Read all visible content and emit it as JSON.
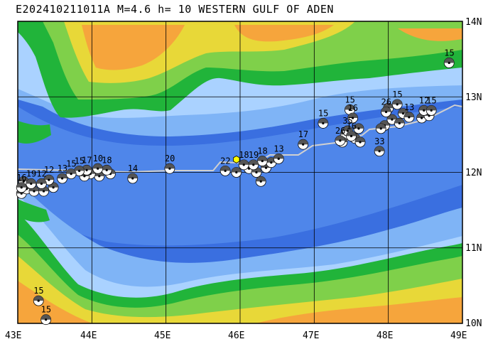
{
  "title": "E202410211011A M=4.6 h= 10 WESTERN GULF OF ADEN",
  "axes": {
    "lon_labels": [
      "43E",
      "44E",
      "45E",
      "46E",
      "47E",
      "48E",
      "49E"
    ],
    "lat_labels": [
      "14N",
      "13N",
      "12N",
      "11N",
      "10N"
    ]
  },
  "colors": {
    "deep_sea": "#3a6fe0",
    "mid_sea": "#4f86ea",
    "shallow_sea": "#7fb4f6",
    "coast_sea": "#aad2ff",
    "lowland": "#21b43a",
    "upland": "#7fd04a",
    "highland": "#e8d838",
    "mountain": "#f6a53c",
    "ridge": "#d0d0d0",
    "mainshock": "#ffff00"
  },
  "mainshock": {
    "lon": 45.95,
    "lat": 12.17
  },
  "events": [
    {
      "lon": 48.82,
      "lat": 13.45,
      "depth": "15"
    },
    {
      "lon": 47.12,
      "lat": 12.65,
      "depth": "15"
    },
    {
      "lon": 47.48,
      "lat": 12.83,
      "depth": "15"
    },
    {
      "lon": 47.52,
      "lat": 12.72,
      "depth": "16"
    },
    {
      "lon": 46.85,
      "lat": 12.37,
      "depth": "17"
    },
    {
      "lon": 47.45,
      "lat": 12.55,
      "depth": "35"
    },
    {
      "lon": 47.5,
      "lat": 12.48,
      "depth": "16"
    },
    {
      "lon": 47.35,
      "lat": 12.42,
      "depth": "26"
    },
    {
      "lon": 47.88,
      "lat": 12.28,
      "depth": "33"
    },
    {
      "lon": 47.97,
      "lat": 12.8,
      "depth": "26"
    },
    {
      "lon": 48.12,
      "lat": 12.9,
      "depth": "15"
    },
    {
      "lon": 48.28,
      "lat": 12.73,
      "depth": "13"
    },
    {
      "lon": 48.48,
      "lat": 12.82,
      "depth": "12"
    },
    {
      "lon": 48.58,
      "lat": 12.82,
      "depth": "15"
    },
    {
      "lon": 46.52,
      "lat": 12.18,
      "depth": "13"
    },
    {
      "lon": 46.3,
      "lat": 12.15,
      "depth": "18"
    },
    {
      "lon": 46.18,
      "lat": 12.1,
      "depth": "19"
    },
    {
      "lon": 46.05,
      "lat": 12.1,
      "depth": "18"
    },
    {
      "lon": 45.8,
      "lat": 12.02,
      "depth": "22"
    },
    {
      "lon": 45.05,
      "lat": 12.05,
      "depth": "20"
    },
    {
      "lon": 44.55,
      "lat": 11.92,
      "depth": "14"
    },
    {
      "lon": 44.2,
      "lat": 12.03,
      "depth": "18"
    },
    {
      "lon": 44.08,
      "lat": 12.05,
      "depth": "10"
    },
    {
      "lon": 43.93,
      "lat": 12.03,
      "depth": "17"
    },
    {
      "lon": 43.83,
      "lat": 12.02,
      "depth": "15"
    },
    {
      "lon": 43.72,
      "lat": 11.98,
      "depth": "15"
    },
    {
      "lon": 43.6,
      "lat": 11.92,
      "depth": "13"
    },
    {
      "lon": 43.42,
      "lat": 11.9,
      "depth": "12"
    },
    {
      "lon": 43.32,
      "lat": 11.85,
      "depth": "12"
    },
    {
      "lon": 43.18,
      "lat": 11.85,
      "depth": "19"
    },
    {
      "lon": 43.05,
      "lat": 11.8,
      "depth": "16"
    },
    {
      "lon": 43.28,
      "lat": 10.3,
      "depth": "15"
    },
    {
      "lon": 43.38,
      "lat": 10.05,
      "depth": "15"
    }
  ],
  "unlabeled_events": [
    {
      "lon": 46.12,
      "lat": 12.05
    },
    {
      "lon": 46.22,
      "lat": 12.0
    },
    {
      "lon": 46.35,
      "lat": 12.06
    },
    {
      "lon": 46.28,
      "lat": 11.88
    },
    {
      "lon": 46.42,
      "lat": 12.13
    },
    {
      "lon": 45.95,
      "lat": 12.0
    },
    {
      "lon": 47.55,
      "lat": 12.45
    },
    {
      "lon": 47.42,
      "lat": 12.5
    },
    {
      "lon": 47.6,
      "lat": 12.58
    },
    {
      "lon": 47.38,
      "lat": 12.4
    },
    {
      "lon": 47.62,
      "lat": 12.4
    },
    {
      "lon": 47.95,
      "lat": 12.62
    },
    {
      "lon": 48.05,
      "lat": 12.7
    },
    {
      "lon": 48.15,
      "lat": 12.65
    },
    {
      "lon": 47.9,
      "lat": 12.58
    },
    {
      "lon": 48.0,
      "lat": 12.85
    },
    {
      "lon": 48.2,
      "lat": 12.78
    },
    {
      "lon": 48.45,
      "lat": 12.72
    },
    {
      "lon": 48.55,
      "lat": 12.75
    },
    {
      "lon": 44.25,
      "lat": 11.98
    },
    {
      "lon": 44.1,
      "lat": 11.95
    },
    {
      "lon": 43.98,
      "lat": 11.98
    },
    {
      "lon": 43.9,
      "lat": 11.95
    },
    {
      "lon": 43.05,
      "lat": 11.72
    },
    {
      "lon": 43.12,
      "lat": 11.78
    },
    {
      "lon": 43.22,
      "lat": 11.75
    },
    {
      "lon": 43.35,
      "lat": 11.75
    },
    {
      "lon": 43.48,
      "lat": 11.8
    },
    {
      "lon": 43.08,
      "lat": 11.88
    }
  ]
}
